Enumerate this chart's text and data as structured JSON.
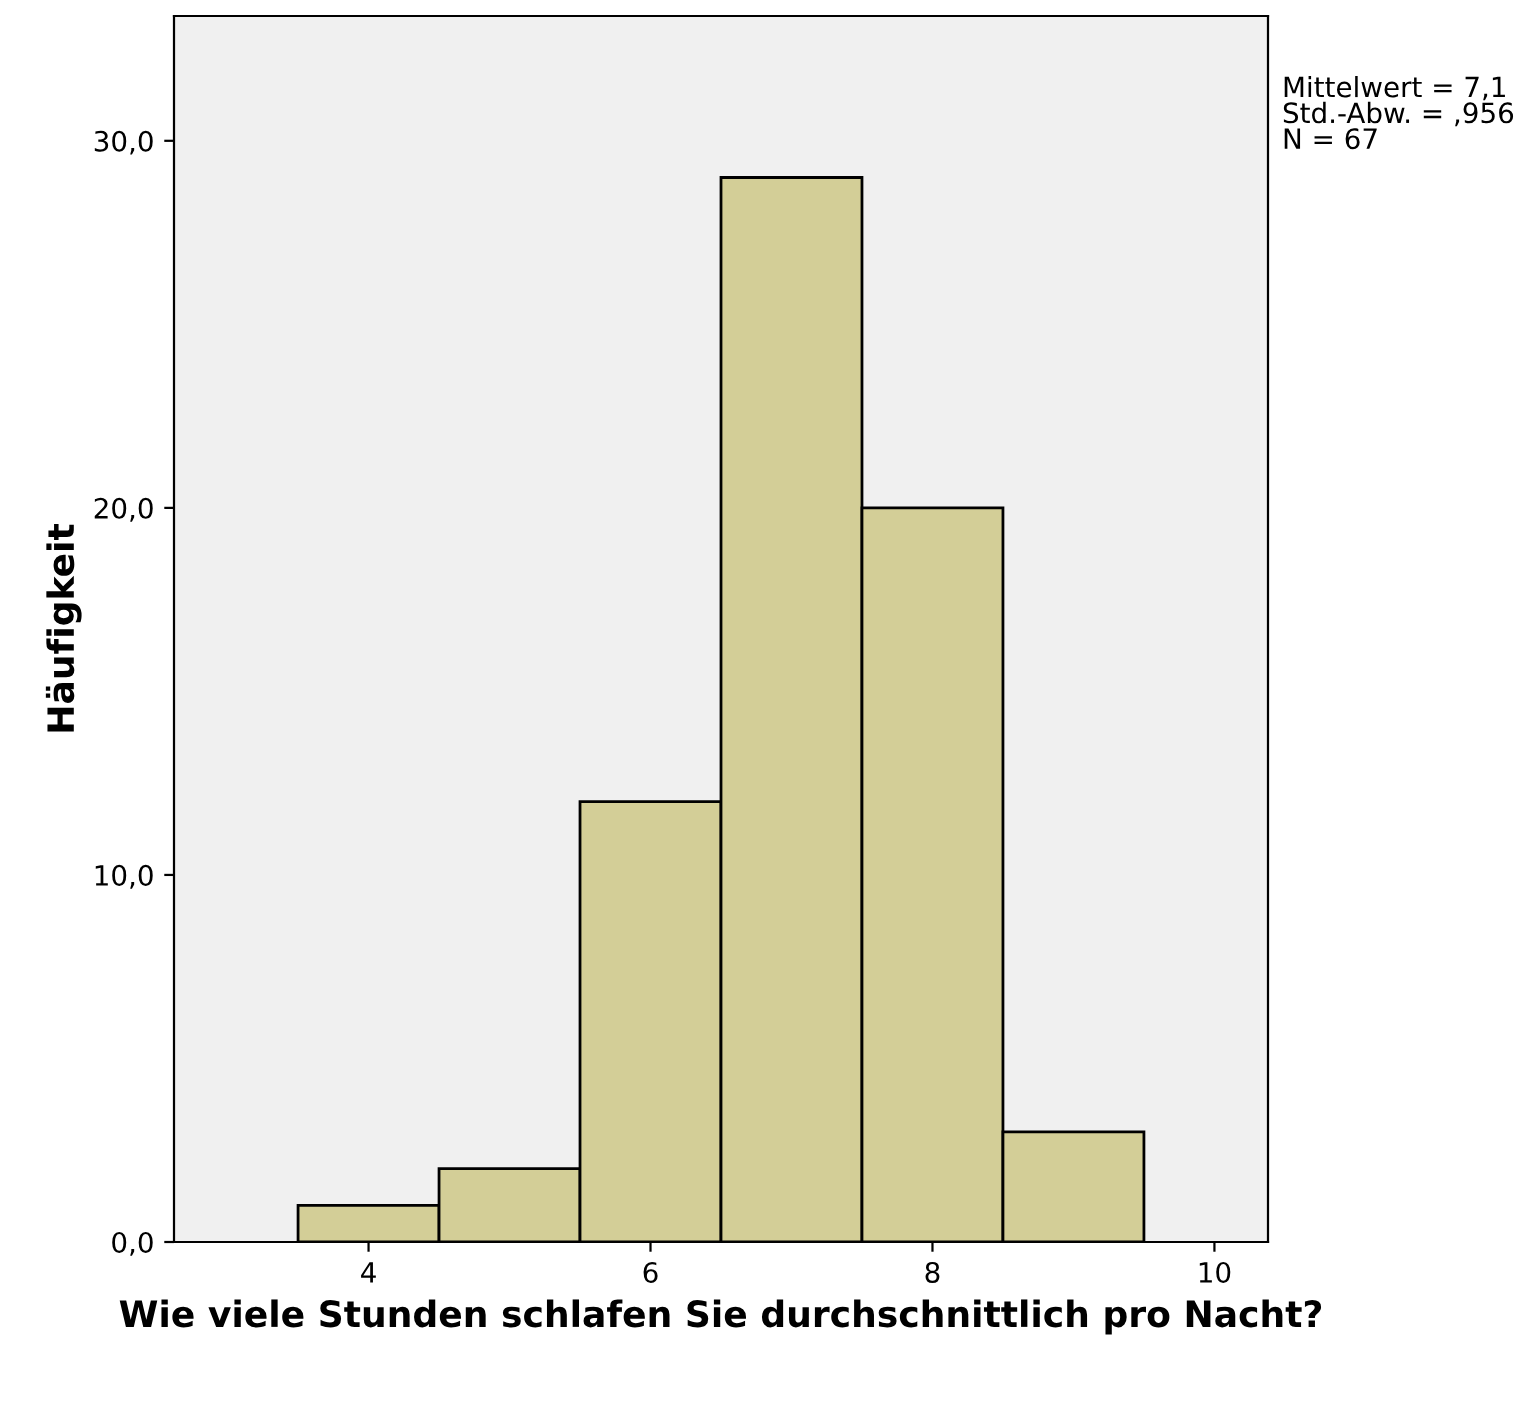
{
  "chart_data": {
    "type": "histogram",
    "xlabel": "Wie viele Stunden schlafen Sie durchschnittlich pro Nacht?",
    "ylabel": "Häufigkeit",
    "bins": [
      3.5,
      4.5,
      5.5,
      6.5,
      7.5,
      8.5,
      9.5
    ],
    "values": [
      1,
      2,
      12,
      29,
      20,
      3
    ],
    "color": "#d3ce97",
    "xlim": [
      2.62,
      10.38
    ],
    "xticks": [
      4,
      6,
      8,
      10
    ],
    "ylim": [
      0,
      33.4
    ],
    "yticks": [
      {
        "value": 0,
        "label": "0,0"
      },
      {
        "value": 10,
        "label": "10,0"
      },
      {
        "value": 20,
        "label": "20,0"
      },
      {
        "value": 30,
        "label": "30,0"
      }
    ],
    "annotations": [
      "Mittelwert = 7,1\nStd.-Abw. = ,956\nN = 67"
    ]
  }
}
